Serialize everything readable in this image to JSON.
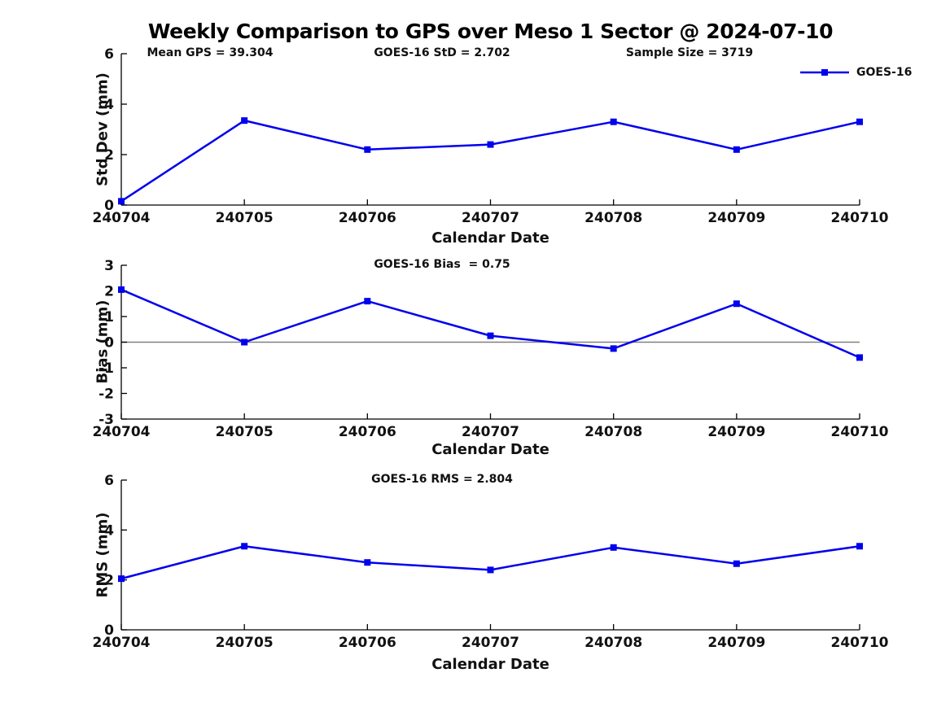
{
  "title": "Weekly Comparison to GPS over Meso 1 Sector @ 2024-07-10",
  "legend": {
    "label": "GOES-16"
  },
  "colors": {
    "series": "#0000ee",
    "axis": "#000000",
    "zero_line": "#808080",
    "text": "#111111",
    "background": "#ffffff"
  },
  "chart_data": [
    {
      "type": "line",
      "id": "std-dev",
      "annotations": [
        "Mean GPS = 39.304",
        "GOES-16 StD = 2.702",
        "Sample Size = 3719"
      ],
      "stats": {
        "mean_gps": 39.304,
        "goes16_std": 2.702,
        "sample_size": 3719
      },
      "categories": [
        "240704",
        "240705",
        "240706",
        "240707",
        "240708",
        "240709",
        "240710"
      ],
      "series": [
        {
          "name": "GOES-16",
          "values": [
            0.15,
            3.35,
            2.2,
            2.4,
            3.3,
            2.2,
            3.3
          ]
        }
      ],
      "xlabel": "Calendar Date",
      "ylabel": "Std Dev (mm)",
      "ylim": [
        0,
        6
      ],
      "yticks": [
        0,
        2,
        4,
        6
      ],
      "grid": false,
      "legend_visible": true,
      "legend_position": "top-right-inside",
      "zero_line": false
    },
    {
      "type": "line",
      "id": "bias",
      "annotations": [
        "GOES-16 Bias  = 0.75"
      ],
      "stats": {
        "goes16_bias": 0.75
      },
      "categories": [
        "240704",
        "240705",
        "240706",
        "240707",
        "240708",
        "240709",
        "240710"
      ],
      "series": [
        {
          "name": "GOES-16",
          "values": [
            2.05,
            0.0,
            1.6,
            0.25,
            -0.25,
            1.5,
            -0.6
          ]
        }
      ],
      "xlabel": "Calendar Date",
      "ylabel": "Bias (mm)",
      "ylim": [
        -3,
        3
      ],
      "yticks": [
        -3,
        -2,
        -1,
        0,
        1,
        2,
        3
      ],
      "grid": false,
      "legend_visible": false,
      "zero_line": true
    },
    {
      "type": "line",
      "id": "rms",
      "annotations": [
        "GOES-16 RMS = 2.804"
      ],
      "stats": {
        "goes16_rms": 2.804
      },
      "categories": [
        "240704",
        "240705",
        "240706",
        "240707",
        "240708",
        "240709",
        "240710"
      ],
      "series": [
        {
          "name": "GOES-16",
          "values": [
            2.05,
            3.35,
            2.7,
            2.4,
            3.3,
            2.65,
            3.35
          ]
        }
      ],
      "xlabel": "Calendar Date",
      "ylabel": "RMS (mm)",
      "ylim": [
        0,
        6
      ],
      "yticks": [
        0,
        2,
        4,
        6
      ],
      "grid": false,
      "legend_visible": false,
      "zero_line": false
    }
  ]
}
